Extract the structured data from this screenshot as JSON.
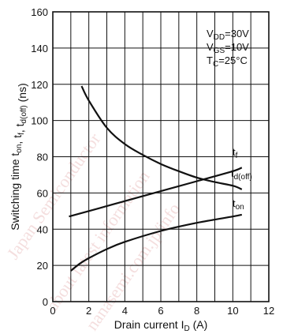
{
  "chart_data": {
    "type": "line",
    "xlabel": "Drain current",
    "xlabel_symbol": "I",
    "xlabel_symbol_sub": "D",
    "xlabel_unit": "(A)",
    "ylabel": "Switching time",
    "ylabel_symbols": [
      {
        "main": "t",
        "sub": "on"
      },
      {
        "main": ", t",
        "sub": "f"
      },
      {
        "main": ", t",
        "sub": "d(off)"
      }
    ],
    "ylabel_unit": "(ns)",
    "xlim": [
      0,
      12
    ],
    "ylim": [
      0,
      160
    ],
    "xticks": [
      0,
      2,
      4,
      6,
      8,
      10,
      12
    ],
    "yticks": [
      0,
      20,
      40,
      60,
      80,
      100,
      120,
      140,
      160
    ],
    "grid": true,
    "conditions": [
      {
        "main": "V",
        "sub": "DD",
        "rest": "=30V"
      },
      {
        "main": "V",
        "sub": "GS",
        "rest": "=10V"
      },
      {
        "main": "T",
        "sub": "C",
        "rest": "=25°C"
      }
    ],
    "series": [
      {
        "label_main": "t",
        "label_sub": "f",
        "x": [
          1.6,
          2,
          3,
          4,
          5,
          6,
          7,
          8,
          9,
          10,
          10.5
        ],
        "y": [
          119,
          111,
          96,
          87,
          81,
          76,
          72,
          68.5,
          66,
          64,
          62
        ]
      },
      {
        "label_main": "t",
        "label_sub": "d(off)",
        "x": [
          0.9,
          2,
          4,
          6,
          8,
          10,
          10.5
        ],
        "y": [
          47,
          50,
          55.5,
          61,
          66.5,
          72,
          74
        ]
      },
      {
        "label_main": "t",
        "label_sub": "on",
        "x": [
          1.0,
          1.5,
          2,
          3,
          4,
          6,
          8,
          10,
          10.5
        ],
        "y": [
          17,
          21,
          24,
          29,
          33,
          39,
          43.5,
          47,
          48
        ]
      }
    ]
  },
  "watermark": [
    "Japan Semiconductor",
    "about latest information",
    "nanasemi.com.jp/info"
  ]
}
